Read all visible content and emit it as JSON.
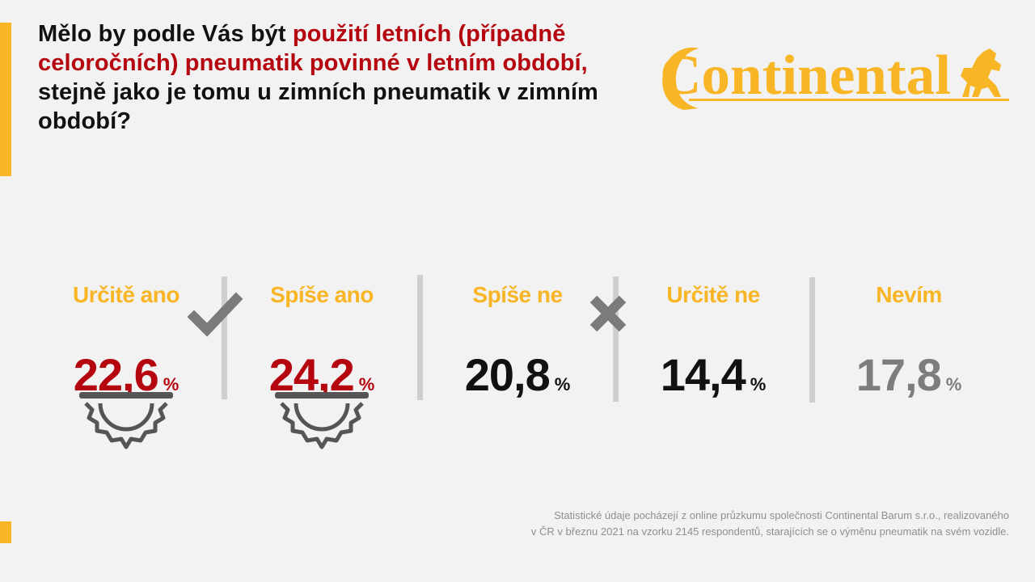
{
  "question": {
    "part1": "Mělo by podle Vás být ",
    "part2": "použití letních (případně celoročních) pneumatik povinné v letním období,",
    "part3": " stejně jako je tomu u zimních pneumatik v zimním období?"
  },
  "logo": {
    "text": "Continental",
    "color": "#f8b526"
  },
  "colors": {
    "accent": "#f8b526",
    "red": "#b5060f",
    "black": "#111111",
    "gray": "#7d7d7d",
    "divider": "#cfcfcf"
  },
  "chart_data": {
    "type": "table",
    "unit": "%",
    "categories": [
      "Určitě ano",
      "Spíše ano",
      "Spíše ne",
      "Určitě ne",
      "Nevím"
    ],
    "values": [
      "22,6",
      "24,2",
      "20,8",
      "14,4",
      "17,8"
    ],
    "value_colors": [
      "#b5060f",
      "#b5060f",
      "#111111",
      "#111111",
      "#7d7d7d"
    ],
    "icons": [
      "tyre-icon",
      "tyre-icon",
      "",
      "",
      ""
    ],
    "group_marks": [
      {
        "icon": "checkmark-icon",
        "group": "yes"
      },
      {
        "icon": "cross-icon",
        "group": "no"
      }
    ]
  },
  "footnote": {
    "line1": "Statistické údaje pocházejí z online průzkumu společnosti Continental Barum s.r.o., realizovaného",
    "line2": "v ČR v březnu 2021 na vzorku 2145 respondentů, starajících se o výměnu pneumatik na svém vozidle."
  }
}
